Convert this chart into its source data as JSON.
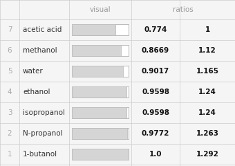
{
  "rows": [
    {
      "rank": "7",
      "name": "acetic acid",
      "visual": 0.774,
      "ratio": "1"
    },
    {
      "rank": "6",
      "name": "methanol",
      "visual": 0.8669,
      "ratio": "1.12"
    },
    {
      "rank": "5",
      "name": "water",
      "visual": 0.9017,
      "ratio": "1.165"
    },
    {
      "rank": "4",
      "name": "ethanol",
      "visual": 0.9598,
      "ratio": "1.24"
    },
    {
      "rank": "3",
      "name": "isopropanol",
      "visual": 0.9598,
      "ratio": "1.24"
    },
    {
      "rank": "2",
      "name": "N-propanol",
      "visual": 0.9772,
      "ratio": "1.263"
    },
    {
      "rank": "1",
      "name": "1-butanol",
      "visual": 1.0,
      "ratio": "1.292"
    }
  ],
  "bg_color": "#f5f5f5",
  "text_color_header": "#999999",
  "text_color_rank": "#aaaaaa",
  "text_color_name": "#333333",
  "text_color_value": "#111111",
  "bar_fill_color": "#d5d5d5",
  "bar_edge_color": "#bbbbbb",
  "bar_empty_color": "#ffffff",
  "grid_color": "#cccccc",
  "header_visual": "visual",
  "header_ratios": "ratios",
  "figsize": [
    3.4,
    2.4
  ],
  "dpi": 100
}
